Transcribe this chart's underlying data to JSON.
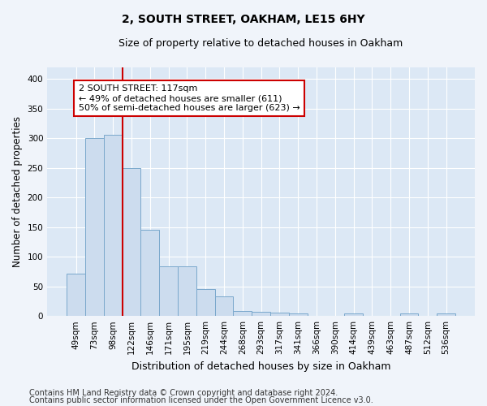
{
  "title1": "2, SOUTH STREET, OAKHAM, LE15 6HY",
  "title2": "Size of property relative to detached houses in Oakham",
  "xlabel": "Distribution of detached houses by size in Oakham",
  "ylabel": "Number of detached properties",
  "categories": [
    "49sqm",
    "73sqm",
    "98sqm",
    "122sqm",
    "146sqm",
    "171sqm",
    "195sqm",
    "219sqm",
    "244sqm",
    "268sqm",
    "293sqm",
    "317sqm",
    "341sqm",
    "366sqm",
    "390sqm",
    "414sqm",
    "439sqm",
    "463sqm",
    "487sqm",
    "512sqm",
    "536sqm"
  ],
  "values": [
    72,
    300,
    305,
    250,
    145,
    84,
    84,
    46,
    33,
    9,
    7,
    6,
    4,
    0,
    0,
    4,
    0,
    0,
    4,
    0,
    4
  ],
  "bar_color": "#ccdcee",
  "bar_edge_color": "#7aa8cc",
  "bar_edge_width": 0.7,
  "vline_color": "#cc0000",
  "vline_x_index": 2.5,
  "annotation_text": "2 SOUTH STREET: 117sqm\n← 49% of detached houses are smaller (611)\n50% of semi-detached houses are larger (623) →",
  "annotation_box_facecolor": "#ffffff",
  "annotation_box_edgecolor": "#cc0000",
  "annotation_fontsize": 8,
  "ylim": [
    0,
    420
  ],
  "yticks": [
    0,
    50,
    100,
    150,
    200,
    250,
    300,
    350,
    400
  ],
  "background_color": "#dce8f5",
  "grid_color": "#ffffff",
  "fig_facecolor": "#f0f4fa",
  "footer1": "Contains HM Land Registry data © Crown copyright and database right 2024.",
  "footer2": "Contains public sector information licensed under the Open Government Licence v3.0.",
  "title1_fontsize": 10,
  "title2_fontsize": 9,
  "xlabel_fontsize": 9,
  "ylabel_fontsize": 8.5,
  "tick_fontsize": 7.5,
  "footer_fontsize": 7
}
